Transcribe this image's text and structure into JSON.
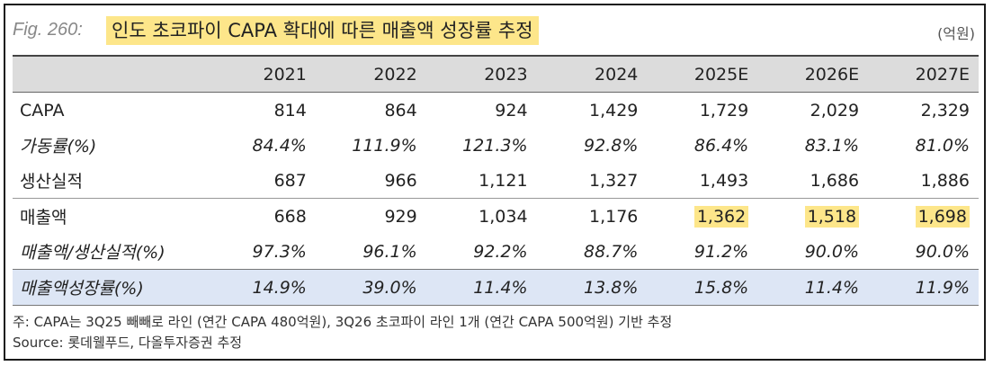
{
  "figure": {
    "label": "Fig. 260:",
    "title": "인도 초코파이 CAPA 확대에 따른 매출액 성장률 추정",
    "unit": "(억원)"
  },
  "table": {
    "columns": [
      "2021",
      "2022",
      "2023",
      "2024",
      "2025E",
      "2026E",
      "2027E"
    ],
    "rows": [
      {
        "label": "CAPA",
        "values": [
          "814",
          "864",
          "924",
          "1,429",
          "1,729",
          "2,029",
          "2,329"
        ]
      },
      {
        "label": "가동률(%)",
        "values": [
          "84.4%",
          "111.9%",
          "121.3%",
          "92.8%",
          "86.4%",
          "83.1%",
          "81.0%"
        ]
      },
      {
        "label": "생산실적",
        "values": [
          "687",
          "966",
          "1,121",
          "1,327",
          "1,493",
          "1,686",
          "1,886"
        ]
      },
      {
        "label": "매출액",
        "values": [
          "668",
          "929",
          "1,034",
          "1,176",
          "1,362",
          "1,518",
          "1,698"
        ]
      },
      {
        "label": "매출액/생산실적(%)",
        "values": [
          "97.3%",
          "96.1%",
          "92.2%",
          "88.7%",
          "91.2%",
          "90.0%",
          "90.0%"
        ]
      },
      {
        "label": "매출액성장률(%)",
        "values": [
          "14.9%",
          "39.0%",
          "11.4%",
          "13.8%",
          "15.8%",
          "11.4%",
          "11.9%"
        ]
      }
    ]
  },
  "colors": {
    "highlight": "#fde68a",
    "header_bg": "#dcdcdc",
    "growth_bg": "#dde6f5"
  },
  "notes": {
    "note": "주: CAPA는 3Q25 빼빼로 라인 (연간 CAPA 480억원), 3Q26 초코파이 라인 1개 (연간 CAPA 500억원) 기반 추정",
    "source": "Source: 롯데웰푸드, 다올투자증권 추정"
  }
}
